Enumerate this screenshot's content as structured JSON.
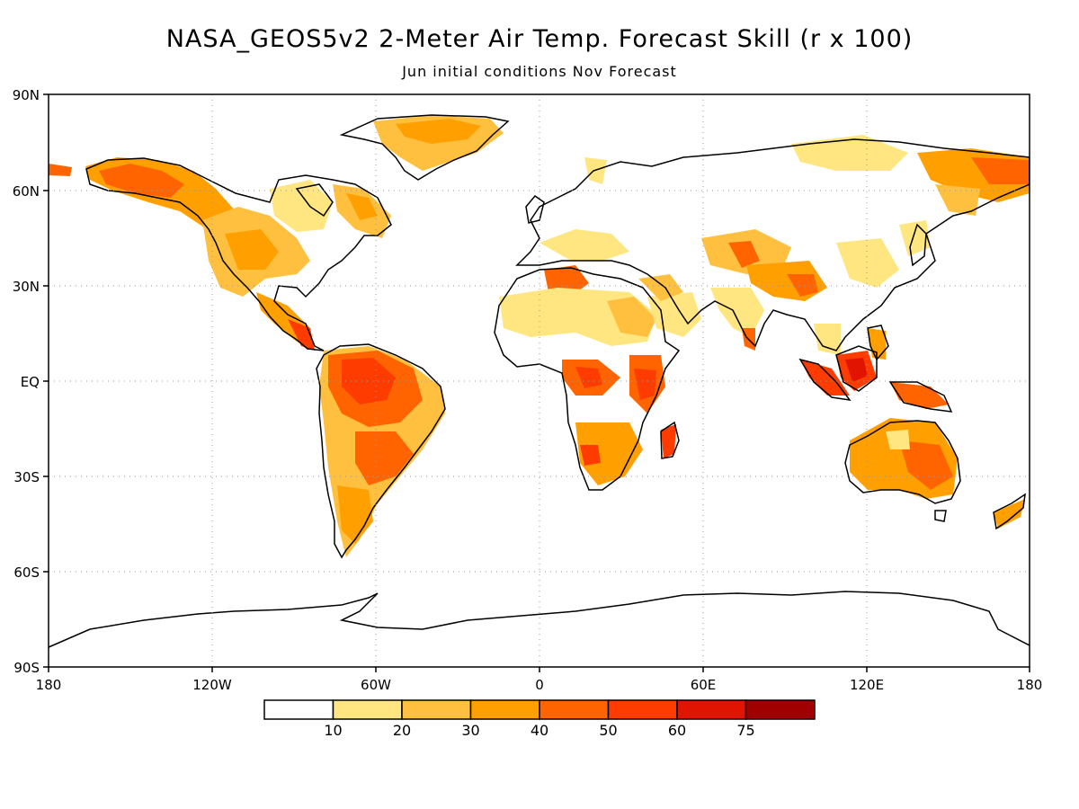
{
  "title": "NASA_GEOS5v2 2-Meter Air Temp. Forecast Skill (r x 100)",
  "subtitle": "Jun initial conditions   Nov Forecast",
  "lat_labels": [
    "90N",
    "60N",
    "30N",
    "EQ",
    "30S",
    "60S",
    "90S"
  ],
  "lon_labels": [
    "180",
    "120W",
    "60W",
    "0",
    "60E",
    "120E",
    "180"
  ],
  "colorbar": {
    "colors": [
      "#ffffff",
      "#ffe680",
      "#ffc040",
      "#ffa000",
      "#ff6400",
      "#ff3c00",
      "#e01400",
      "#a00000"
    ],
    "labels": [
      "10",
      "20",
      "30",
      "40",
      "50",
      "60",
      "75"
    ]
  }
}
